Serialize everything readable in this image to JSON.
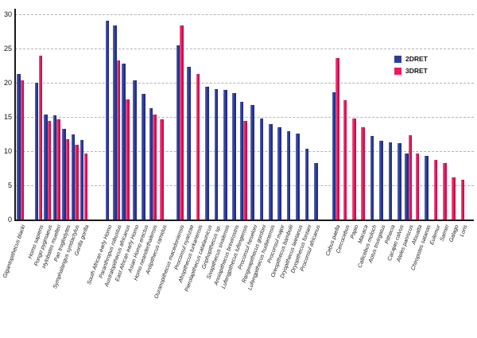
{
  "chart_data": {
    "type": "bar",
    "title": "",
    "xlabel": "",
    "ylabel": "",
    "ylim": [
      0,
      30
    ],
    "yticks": [
      0,
      5,
      10,
      15,
      20,
      25,
      30
    ],
    "grid": "horizontal-dashed",
    "legend_position": "upper-right",
    "categories": [
      "Gigantopithecus blacki",
      "Homo sapiens",
      "Pongo pygmaeus",
      "Hylobates muelleri",
      "Pan troglodytes",
      "Symphalangus syndactylus",
      "Gorilla gorilla",
      "South African early Homo",
      "Paranthropus robustus",
      "Australopithecus africanus",
      "East African early Homo",
      "Asian Homo erectus",
      "Homo neanderthalensis",
      "Ardipithecus ramidus",
      "Ouranopithecus macedoniensis",
      "Proconsul nyanzae",
      "Afropithecus turkanensis",
      "Pierolapithecus catalaunicus",
      "Griphopithecus sp.",
      "Sivapithecus sivalensis",
      "Anoiapithecus brevirostris",
      "Lufengpithecus lufengensis",
      "Proconsul heseloni",
      "Rangwapithecus gordoni",
      "Lufengpithecus hudienensis",
      "Proconsul major",
      "Oreopithecus bambolii",
      "Dryopithecus laietanus",
      "Dryopithecus fontani",
      "Proconsul africanus",
      "Cebus paella",
      "Cercocebus",
      "Papio",
      "Macaca",
      "Callicebus moloch",
      "Aotus trivirgatus",
      "Pithecia",
      "Cacajao calvus",
      "Ateles paniscus",
      "Alouatta",
      "Chiropotes satanas",
      "Eulemur",
      "Saimiri",
      "Galago",
      "Loris"
    ],
    "series": [
      {
        "name": "2DRET",
        "color": "#2e3d9a",
        "values": [
          21.3,
          20.0,
          15.4,
          15.2,
          13.2,
          12.4,
          11.6,
          29.1,
          28.4,
          22.8,
          20.4,
          18.4,
          16.3,
          null,
          25.5,
          22.3,
          null,
          19.4,
          19.1,
          19.0,
          18.5,
          17.2,
          16.8,
          14.8,
          13.9,
          13.5,
          12.9,
          12.6,
          10.3,
          8.3,
          18.6,
          null,
          null,
          null,
          12.2,
          11.5,
          11.3,
          11.2,
          9.7,
          null,
          9.3,
          null,
          null,
          null,
          null
        ]
      },
      {
        "name": "3DRET",
        "color": "#ec1a5c",
        "values": [
          20.4,
          24.0,
          14.4,
          14.6,
          11.8,
          10.9,
          9.7,
          null,
          23.3,
          17.6,
          null,
          null,
          15.4,
          14.6,
          28.4,
          null,
          21.3,
          null,
          null,
          null,
          null,
          14.4,
          null,
          null,
          null,
          null,
          null,
          null,
          null,
          null,
          23.6,
          17.4,
          14.8,
          13.5,
          null,
          null,
          null,
          null,
          12.3,
          9.7,
          null,
          8.7,
          8.2,
          6.2,
          5.8
        ]
      }
    ],
    "group_gaps": [
      {
        "before": "Homo sapiens",
        "extra_slots": 1.0
      },
      {
        "before": "South African early Homo",
        "extra_slots": 1.6
      },
      {
        "before": "Ouranopithecus macedoniensis",
        "extra_slots": 1.0
      },
      {
        "before": "Cebus paella",
        "extra_slots": 1.2
      }
    ]
  },
  "legend": {
    "items": [
      {
        "label": "2DRET",
        "color": "#2e3d9a"
      },
      {
        "label": "3DRET",
        "color": "#ec1a5c"
      }
    ]
  }
}
